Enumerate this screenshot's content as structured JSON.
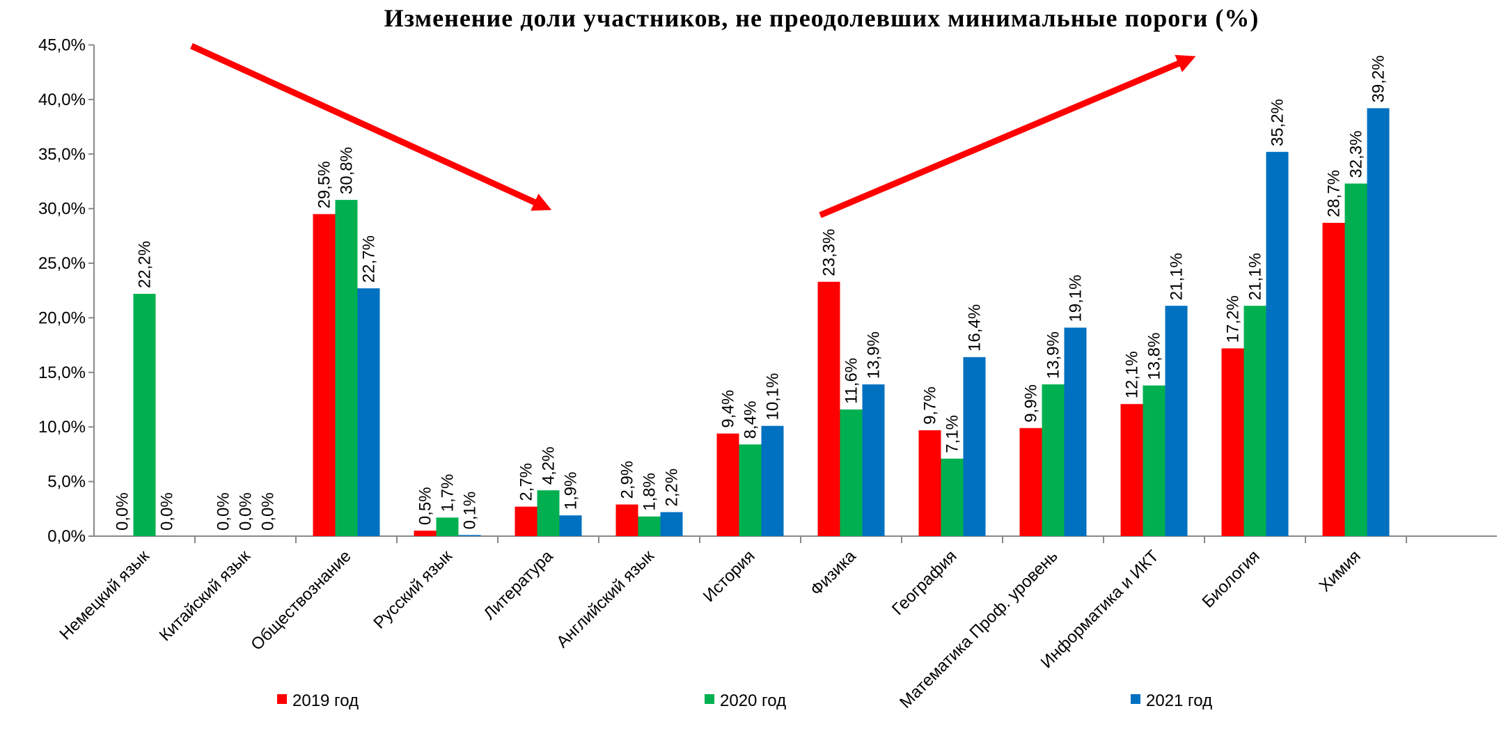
{
  "chart_data": {
    "type": "bar",
    "title": "Изменение доли участников, не преодолевших минимальные пороги (%)",
    "categories": [
      "Немецкий язык",
      "Китайский язык",
      "Обществознание",
      "Русский язык",
      "Литература",
      "Английский язык",
      "История",
      "Физика",
      "География",
      "Математика Проф. уровень",
      "Информатика и ИКТ",
      "Биология",
      "Химия"
    ],
    "series": [
      {
        "name": "2019 год",
        "color": "#ff0000",
        "values": [
          0.0,
          0.0,
          29.5,
          0.5,
          2.7,
          2.9,
          9.4,
          23.3,
          9.7,
          9.9,
          12.1,
          17.2,
          28.7
        ],
        "value_labels": [
          "0,0%",
          "0,0%",
          "29,5%",
          "0,5%",
          "2,7%",
          "2,9%",
          "9,4%",
          "23,3%",
          "9,7%",
          "9,9%",
          "12,1%",
          "17,2%",
          "28,7%"
        ]
      },
      {
        "name": "2020 год",
        "color": "#00b050",
        "values": [
          22.2,
          0.0,
          30.8,
          1.7,
          4.2,
          1.8,
          8.4,
          11.6,
          7.1,
          13.9,
          13.8,
          21.1,
          32.3
        ],
        "value_labels": [
          "22,2%",
          "0,0%",
          "30,8%",
          "1,7%",
          "4,2%",
          "1,8%",
          "8,4%",
          "11,6%",
          "7,1%",
          "13,9%",
          "13,8%",
          "21,1%",
          "32,3%"
        ]
      },
      {
        "name": "2021 год",
        "color": "#0070c0",
        "values": [
          0.0,
          0.0,
          22.7,
          0.1,
          1.9,
          2.2,
          10.1,
          13.9,
          16.4,
          19.1,
          21.1,
          35.2,
          39.2
        ],
        "value_labels": [
          "0,0%",
          "0,0%",
          "22,7%",
          "0,1%",
          "1,9%",
          "2,2%",
          "10,1%",
          "13,9%",
          "16,4%",
          "19,1%",
          "21,1%",
          "35,2%",
          "39,2%"
        ]
      }
    ],
    "ylim": [
      0,
      45
    ],
    "yticks": [
      {
        "value": 0,
        "label": "0,0%"
      },
      {
        "value": 5,
        "label": "5,0%"
      },
      {
        "value": 10,
        "label": "10,0%"
      },
      {
        "value": 15,
        "label": "15,0%"
      },
      {
        "value": 20,
        "label": "20,0%"
      },
      {
        "value": 25,
        "label": "25,0%"
      },
      {
        "value": 30,
        "label": "30,0%"
      },
      {
        "value": 35,
        "label": "35,0%"
      },
      {
        "value": 40,
        "label": "40,0%"
      },
      {
        "value": 45,
        "label": "45,0%"
      }
    ],
    "grid": false,
    "legend": "bottom"
  }
}
